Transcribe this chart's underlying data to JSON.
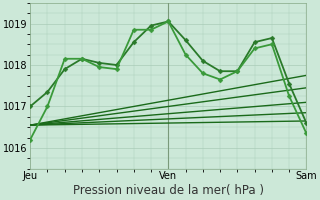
{
  "xlabel": "Pression niveau de la mer( hPa )",
  "bg_color": "#cce8d8",
  "plot_bg_color": "#cce8d8",
  "grid_color": "#aaccb8",
  "xlim": [
    0,
    48
  ],
  "ylim": [
    1015.5,
    1019.5
  ],
  "yticks": [
    1016,
    1017,
    1018,
    1019
  ],
  "xtick_positions": [
    0,
    24,
    48
  ],
  "xtick_labels": [
    "Jeu",
    "Ven",
    "Sam"
  ],
  "series": [
    {
      "x": [
        0,
        3,
        6,
        9,
        12,
        15,
        18,
        21,
        24,
        27,
        30,
        33,
        36,
        39,
        42,
        45,
        48
      ],
      "y": [
        1017.0,
        1017.35,
        1017.9,
        1018.15,
        1018.05,
        1018.0,
        1018.55,
        1018.95,
        1019.05,
        1018.6,
        1018.1,
        1017.85,
        1017.85,
        1018.55,
        1018.65,
        1017.55,
        1016.6
      ],
      "color": "#2a7a2a",
      "lw": 1.3,
      "marker": "D",
      "ms": 2.5,
      "zorder": 5
    },
    {
      "x": [
        0,
        3,
        6,
        9,
        12,
        15,
        18,
        21,
        24,
        27,
        30,
        33,
        36,
        39,
        42,
        45,
        48
      ],
      "y": [
        1016.2,
        1017.0,
        1018.15,
        1018.15,
        1017.95,
        1017.9,
        1018.85,
        1018.85,
        1019.05,
        1018.25,
        1017.8,
        1017.65,
        1017.85,
        1018.4,
        1018.5,
        1017.25,
        1016.35
      ],
      "color": "#3a9a3a",
      "lw": 1.3,
      "marker": "D",
      "ms": 2.5,
      "zorder": 5
    },
    {
      "x": [
        0,
        48
      ],
      "y": [
        1016.55,
        1016.65
      ],
      "color": "#1a6a1a",
      "lw": 1.0,
      "marker": null,
      "ms": 0,
      "zorder": 4
    },
    {
      "x": [
        0,
        48
      ],
      "y": [
        1016.55,
        1016.85
      ],
      "color": "#1a6a1a",
      "lw": 1.0,
      "marker": null,
      "ms": 0,
      "zorder": 4
    },
    {
      "x": [
        0,
        48
      ],
      "y": [
        1016.55,
        1017.1
      ],
      "color": "#1a6a1a",
      "lw": 1.0,
      "marker": null,
      "ms": 0,
      "zorder": 4
    },
    {
      "x": [
        0,
        48
      ],
      "y": [
        1016.55,
        1017.45
      ],
      "color": "#1a6a1a",
      "lw": 1.0,
      "marker": null,
      "ms": 0,
      "zorder": 4
    },
    {
      "x": [
        0,
        48
      ],
      "y": [
        1016.55,
        1017.75
      ],
      "color": "#1a6a1a",
      "lw": 1.0,
      "marker": null,
      "ms": 0,
      "zorder": 4
    }
  ],
  "vline_positions": [
    24,
    48
  ],
  "vline_color": "#7a9a7a",
  "xlabel_fontsize": 8.5,
  "tick_fontsize": 7.0
}
